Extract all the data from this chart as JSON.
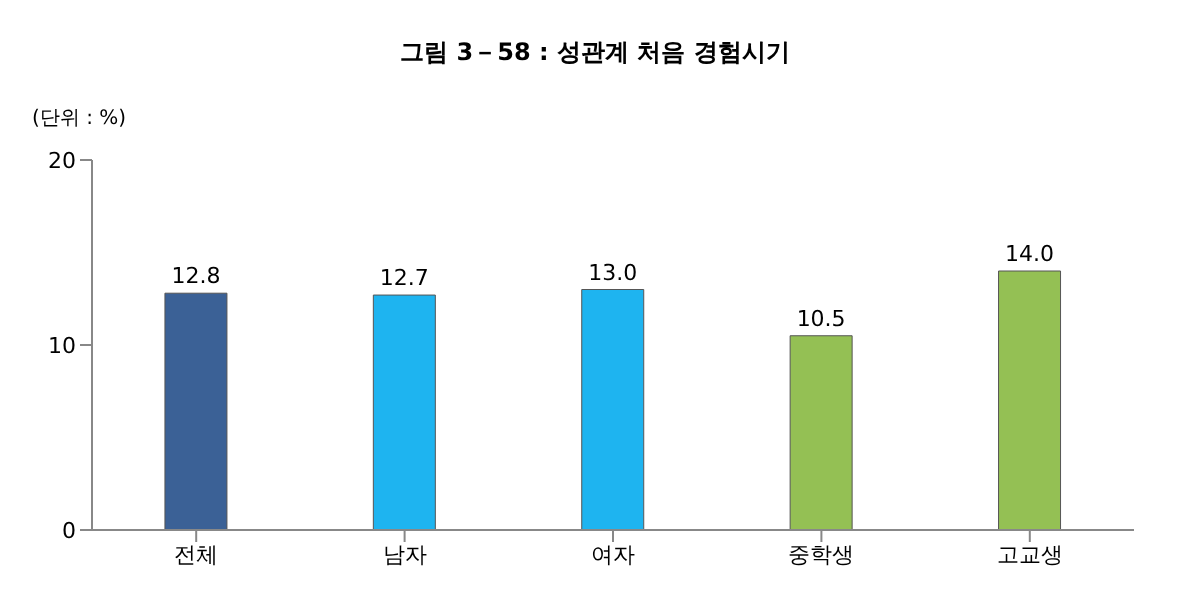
{
  "chart_data": {
    "type": "bar",
    "title": "그림 3－58 : 성관계 처음 경험시기",
    "ylabel": "(단위 : %)",
    "categories": [
      "전체",
      "남자",
      "여자",
      "중학생",
      "고교생"
    ],
    "values": [
      12.8,
      12.7,
      13.0,
      10.5,
      14.0
    ],
    "colors": [
      "#3b6196",
      "#1eb4f0",
      "#1eb4f0",
      "#94c054",
      "#94c054"
    ],
    "value_labels": [
      "12.8",
      "12.7",
      "13.0",
      "10.5",
      "14.0"
    ],
    "ylim": [
      0,
      20
    ],
    "yticks": [
      0,
      10,
      20
    ],
    "grid": false
  }
}
